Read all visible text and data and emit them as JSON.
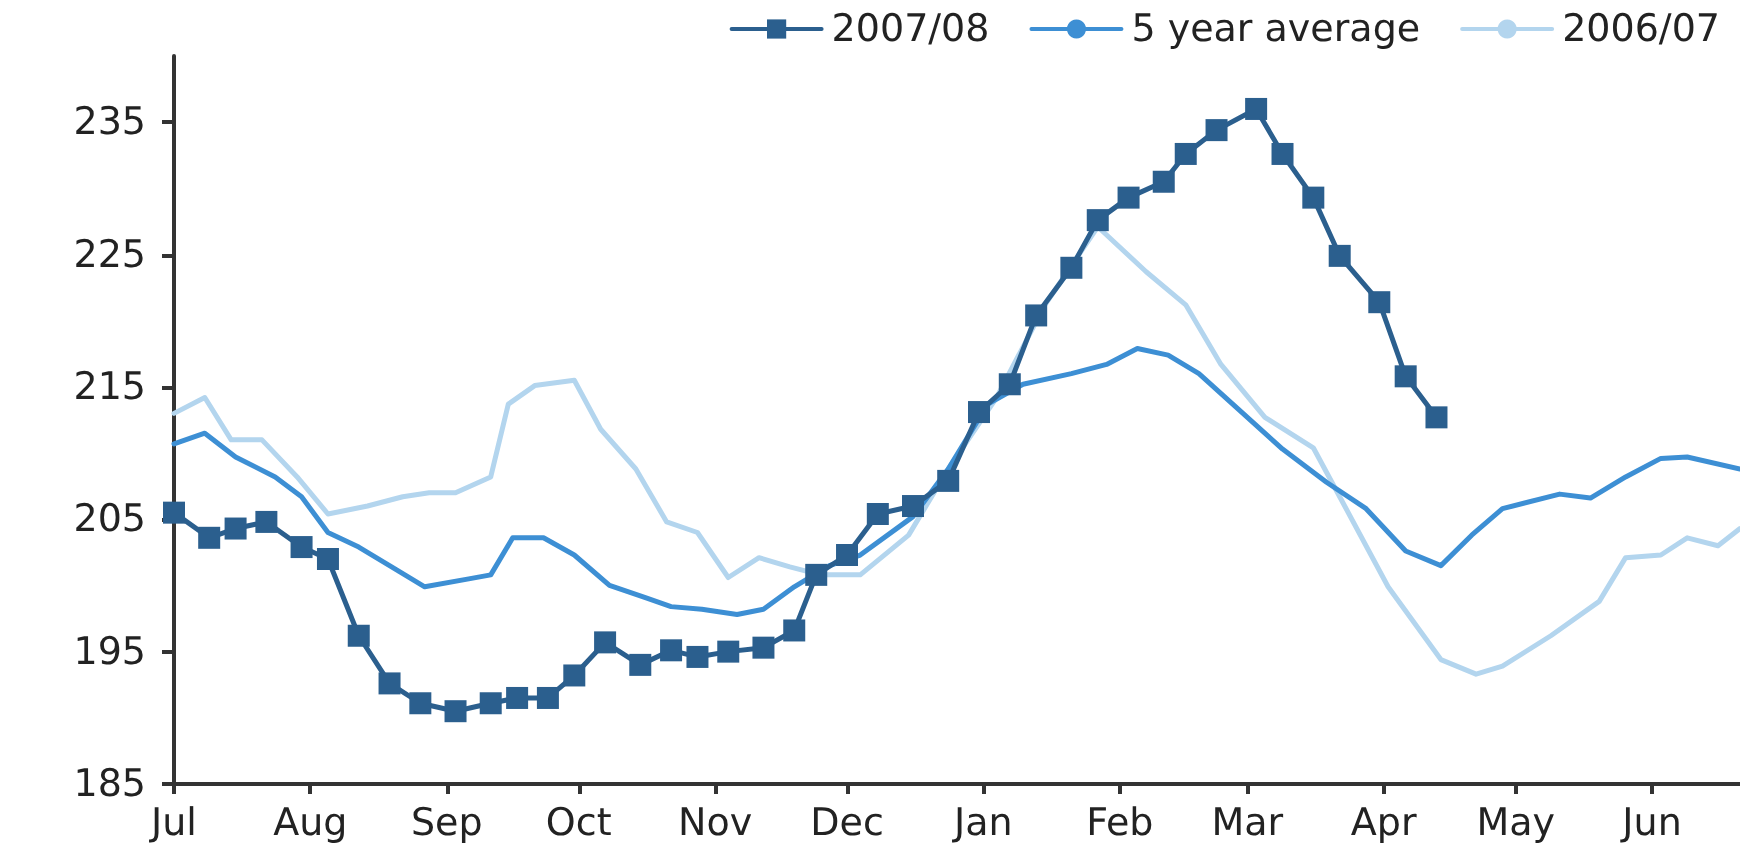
{
  "chart_data": {
    "type": "line",
    "legend": "top",
    "grid": false,
    "line_style": "solid",
    "xlim": [
      "2007-07-01",
      "2008-06-21"
    ],
    "xticks": [
      {
        "value": "2007-07-01",
        "label": "Jul"
      },
      {
        "value": "2007-08-01",
        "label": "Aug"
      },
      {
        "value": "2007-09-01",
        "label": "Sep"
      },
      {
        "value": "2007-10-01",
        "label": "Oct"
      },
      {
        "value": "2007-11-01",
        "label": "Nov"
      },
      {
        "value": "2007-12-01",
        "label": "Dec"
      },
      {
        "value": "2008-01-01",
        "label": "Jan"
      },
      {
        "value": "2008-02-01",
        "label": "Feb"
      },
      {
        "value": "2008-03-01",
        "label": "Mar"
      },
      {
        "value": "2008-04-01",
        "label": "Apr"
      },
      {
        "value": "2008-05-01",
        "label": "May"
      },
      {
        "value": "2008-06-01",
        "label": "Jun"
      }
    ],
    "ylim": [
      185,
      240
    ],
    "yticks": [
      185,
      195,
      205,
      215,
      225,
      235
    ],
    "series": [
      {
        "name": "2007/08",
        "color": "#2b5f8e",
        "marker": "square",
        "x": [
          "2007-07-01",
          "2007-07-09",
          "2007-07-15",
          "2007-07-22",
          "2007-07-30",
          "2007-08-05",
          "2007-08-12",
          "2007-08-19",
          "2007-08-26",
          "2007-09-03",
          "2007-09-11",
          "2007-09-17",
          "2007-09-24",
          "2007-09-30",
          "2007-10-07",
          "2007-10-15",
          "2007-10-22",
          "2007-10-28",
          "2007-11-04",
          "2007-11-12",
          "2007-11-19",
          "2007-11-24",
          "2007-12-01",
          "2007-12-08",
          "2007-12-16",
          "2007-12-24",
          "2007-12-31",
          "2008-01-07",
          "2008-01-13",
          "2008-01-21",
          "2008-01-27",
          "2008-02-03",
          "2008-02-11",
          "2008-02-16",
          "2008-02-23",
          "2008-03-03",
          "2008-03-09",
          "2008-03-16",
          "2008-03-22",
          "2008-03-31",
          "2008-04-06",
          "2008-04-13"
        ],
        "values": [
          205.5,
          203.6,
          204.3,
          204.8,
          202.9,
          202,
          196.2,
          192.6,
          191.1,
          190.5,
          191.1,
          191.5,
          191.5,
          193.2,
          195.7,
          194,
          195.1,
          194.6,
          195,
          195.3,
          196.6,
          200.8,
          202.3,
          205.4,
          206,
          207.9,
          213.1,
          215.2,
          220.4,
          224,
          227.6,
          229.3,
          230.5,
          232.6,
          234.4,
          236,
          232.6,
          229.3,
          224.9,
          221.4,
          215.8,
          212.7
        ]
      },
      {
        "name": "5 year average",
        "color": "#3d8fd4",
        "marker": "none",
        "x": [
          "2007-07-01",
          "2007-07-08",
          "2007-07-15",
          "2007-07-24",
          "2007-07-30",
          "2007-08-05",
          "2007-08-12",
          "2007-08-19",
          "2007-08-27",
          "2007-09-06",
          "2007-09-11",
          "2007-09-16",
          "2007-09-23",
          "2007-09-30",
          "2007-10-08",
          "2007-10-16",
          "2007-10-22",
          "2007-10-29",
          "2007-11-06",
          "2007-11-12",
          "2007-11-19",
          "2007-11-27",
          "2007-12-04",
          "2007-12-16",
          "2007-12-24",
          "2008-01-02",
          "2008-01-10",
          "2008-01-21",
          "2008-01-29",
          "2008-02-05",
          "2008-02-12",
          "2008-02-19",
          "2008-02-28",
          "2008-03-09",
          "2008-03-19",
          "2008-03-28",
          "2008-04-06",
          "2008-04-14",
          "2008-04-21",
          "2008-04-28",
          "2008-05-11",
          "2008-05-18",
          "2008-05-26",
          "2008-06-03",
          "2008-06-09",
          "2008-06-21"
        ],
        "values": [
          210.7,
          211.5,
          209.7,
          208.2,
          206.7,
          204,
          202.9,
          201.5,
          199.9,
          200.5,
          200.8,
          203.6,
          203.6,
          202.3,
          200,
          199.1,
          198.4,
          198.2,
          197.8,
          198.2,
          199.9,
          201.5,
          202.3,
          205.2,
          208.8,
          213.7,
          215.2,
          216,
          216.7,
          217.9,
          217.4,
          216,
          213.3,
          210.3,
          207.8,
          205.8,
          202.6,
          201.5,
          203.8,
          205.8,
          206.9,
          206.6,
          208.2,
          209.6,
          209.7,
          208.8
        ]
      },
      {
        "name": "2006/07",
        "color": "#b3d5ee",
        "marker": "none",
        "x": [
          "2007-07-01",
          "2007-07-08",
          "2007-07-14",
          "2007-07-21",
          "2007-07-29",
          "2007-08-05",
          "2007-08-14",
          "2007-08-22",
          "2007-08-28",
          "2007-09-03",
          "2007-09-11",
          "2007-09-15",
          "2007-09-21",
          "2007-09-30",
          "2007-10-06",
          "2007-10-14",
          "2007-10-21",
          "2007-10-28",
          "2007-11-04",
          "2007-11-11",
          "2007-11-18",
          "2007-11-25",
          "2007-12-04",
          "2007-12-15",
          "2007-12-24",
          "2008-01-04",
          "2008-01-15",
          "2008-01-27",
          "2008-02-07",
          "2008-02-16",
          "2008-02-24",
          "2008-03-05",
          "2008-03-16",
          "2008-03-22",
          "2008-04-02",
          "2008-04-14",
          "2008-04-22",
          "2008-04-28",
          "2008-05-09",
          "2008-05-20",
          "2008-05-26",
          "2008-06-03",
          "2008-06-09",
          "2008-06-16",
          "2008-06-21"
        ],
        "values": [
          213,
          214.2,
          211,
          211,
          208.2,
          205.4,
          206,
          206.7,
          207,
          207,
          208.2,
          213.7,
          215.1,
          215.5,
          211.8,
          208.8,
          204.8,
          204,
          200.6,
          202.1,
          201.4,
          200.8,
          200.8,
          203.8,
          208.8,
          214.2,
          221.2,
          227.1,
          223.7,
          221.2,
          216.7,
          212.7,
          210.4,
          206.7,
          199.9,
          194.4,
          193.3,
          193.9,
          196.2,
          198.8,
          202.1,
          202.3,
          203.6,
          203,
          204.3
        ]
      }
    ]
  }
}
